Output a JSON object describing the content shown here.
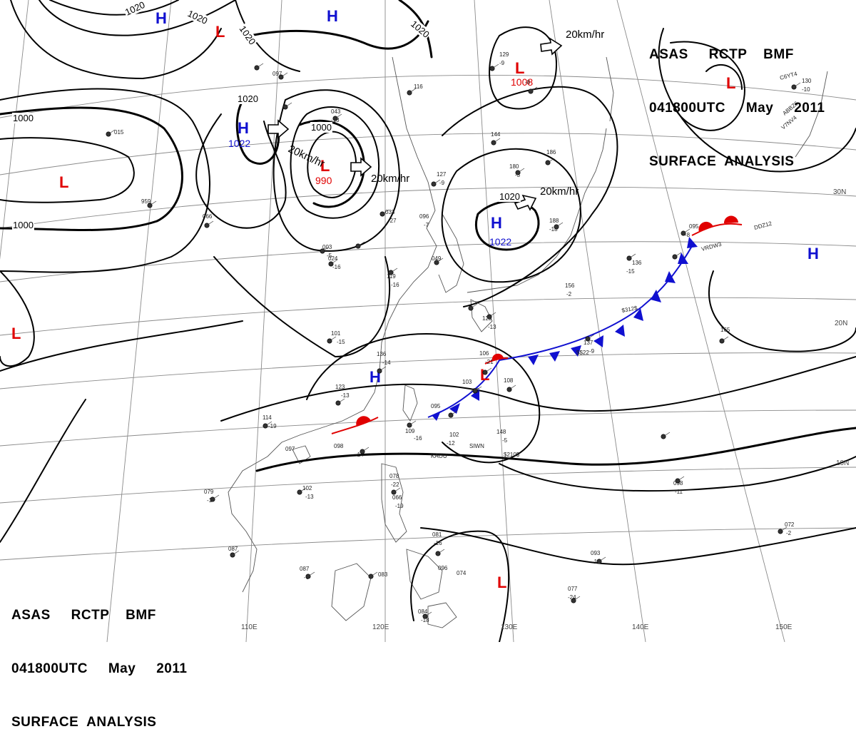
{
  "header": {
    "line1": "ASAS     RCTP    BMF",
    "line2": "041800UTC     May     2011",
    "line3": "SURFACE  ANALYSIS"
  },
  "colors": {
    "high": "#1010d0",
    "low": "#e00000",
    "isobar": "#000000",
    "grid": "#8a8a8a",
    "coast": "#555555"
  },
  "pressure_systems": [
    {
      "id": "h1",
      "type": "H",
      "value": ""
    },
    {
      "id": "h2",
      "type": "H",
      "value": ""
    },
    {
      "id": "h3",
      "type": "H",
      "value": "1022"
    },
    {
      "id": "h4",
      "type": "H",
      "value": "1022"
    },
    {
      "id": "h5",
      "type": "H",
      "value": ""
    },
    {
      "id": "h6",
      "type": "H",
      "value": ""
    },
    {
      "id": "l1",
      "type": "L",
      "value": ""
    },
    {
      "id": "l2",
      "type": "L",
      "value": "990"
    },
    {
      "id": "l3",
      "type": "L",
      "value": "1008"
    },
    {
      "id": "l4",
      "type": "L",
      "value": ""
    },
    {
      "id": "l5",
      "type": "L",
      "value": ""
    },
    {
      "id": "l6",
      "type": "L",
      "value": ""
    },
    {
      "id": "l7",
      "type": "L",
      "value": ""
    },
    {
      "id": "l8",
      "type": "L",
      "value": ""
    }
  ],
  "isobar_labels": [
    "1020",
    "1020",
    "1020",
    "1020",
    "1000",
    "1000",
    "1000",
    "1020",
    "1020"
  ],
  "movement_labels": [
    "20km/hr",
    "20km/hr",
    "20km/hr",
    "20km/hr"
  ],
  "lat_labels": [
    "30N",
    "20N",
    "10N"
  ],
  "lon_labels": [
    "110E",
    "120E",
    "130E",
    "140E",
    "150E"
  ],
  "stations": [
    {
      "id": "s1",
      "value": "136"
    },
    {
      "id": "s2",
      "value": "-14"
    },
    {
      "id": "s3",
      "value": "123"
    },
    {
      "id": "s4",
      "value": "-13"
    },
    {
      "id": "s5",
      "value": "114"
    },
    {
      "id": "s6",
      "value": "-19"
    },
    {
      "id": "s7",
      "value": "097"
    },
    {
      "id": "s8",
      "value": "098"
    },
    {
      "id": "s9",
      "value": "-14"
    },
    {
      "id": "s10",
      "value": "109"
    },
    {
      "id": "s11",
      "value": "-16"
    },
    {
      "id": "s12",
      "value": "102"
    },
    {
      "id": "s13",
      "value": "-12"
    },
    {
      "id": "s14",
      "value": "148"
    },
    {
      "id": "s15",
      "value": "-5"
    },
    {
      "id": "s16",
      "value": "095"
    },
    {
      "id": "s17",
      "value": "106"
    },
    {
      "id": "s18",
      "value": "-21"
    },
    {
      "id": "s19",
      "value": "103"
    },
    {
      "id": "s20",
      "value": "-15"
    },
    {
      "id": "s21",
      "value": "108"
    },
    {
      "id": "s22",
      "value": "137"
    },
    {
      "id": "s23",
      "value": "-9"
    },
    {
      "id": "s24",
      "value": "165"
    },
    {
      "id": "s25",
      "value": "136"
    },
    {
      "id": "s26",
      "value": "-15"
    },
    {
      "id": "s27",
      "value": "129"
    },
    {
      "id": "s28",
      "value": "-13"
    },
    {
      "id": "s29",
      "value": "156"
    },
    {
      "id": "s30",
      "value": "-2"
    },
    {
      "id": "s31",
      "value": "188"
    },
    {
      "id": "s32",
      "value": "-18"
    },
    {
      "id": "s33",
      "value": "095"
    },
    {
      "id": "s34",
      "value": "-8"
    },
    {
      "id": "s35",
      "value": "130"
    },
    {
      "id": "s36",
      "value": "-10"
    },
    {
      "id": "s37",
      "value": "078"
    },
    {
      "id": "s38",
      "value": "-22"
    },
    {
      "id": "s39",
      "value": "066"
    },
    {
      "id": "s40",
      "value": "-19"
    },
    {
      "id": "s41",
      "value": "081"
    },
    {
      "id": "s42",
      "value": "-16"
    },
    {
      "id": "s43",
      "value": "096"
    },
    {
      "id": "s44",
      "value": "074"
    },
    {
      "id": "s45",
      "value": "087"
    },
    {
      "id": "s46",
      "value": "-6"
    },
    {
      "id": "s47",
      "value": "084"
    },
    {
      "id": "s48",
      "value": "-18"
    },
    {
      "id": "s49",
      "value": "077"
    },
    {
      "id": "s50",
      "value": "-24"
    },
    {
      "id": "s51",
      "value": "093"
    },
    {
      "id": "s52",
      "value": "-10"
    },
    {
      "id": "s53",
      "value": "072"
    },
    {
      "id": "s54",
      "value": "-2"
    },
    {
      "id": "s55",
      "value": "098"
    },
    {
      "id": "s56",
      "value": "-11"
    },
    {
      "id": "s57",
      "value": "102"
    },
    {
      "id": "s58",
      "value": "-13"
    },
    {
      "id": "s59",
      "value": "079"
    },
    {
      "id": "s60",
      "value": "-1"
    },
    {
      "id": "s61",
      "value": "087"
    },
    {
      "id": "s62",
      "value": "083"
    },
    {
      "id": "s63",
      "value": "101"
    },
    {
      "id": "s64",
      "value": "-15"
    },
    {
      "id": "s65",
      "value": "119"
    },
    {
      "id": "s66",
      "value": "-16"
    },
    {
      "id": "s67",
      "value": "024"
    },
    {
      "id": "s68",
      "value": "-16"
    },
    {
      "id": "s69",
      "value": "049"
    },
    {
      "id": "s70",
      "value": "033"
    },
    {
      "id": "s71",
      "value": "-27"
    },
    {
      "id": "s72",
      "value": "096"
    },
    {
      "id": "s73",
      "value": "-7"
    },
    {
      "id": "s74",
      "value": "127"
    },
    {
      "id": "s75",
      "value": "-9"
    },
    {
      "id": "s76",
      "value": "144"
    },
    {
      "id": "s77",
      "value": "180"
    },
    {
      "id": "s78",
      "value": "-3"
    },
    {
      "id": "s79",
      "value": "186"
    },
    {
      "id": "s80",
      "value": "043"
    },
    {
      "id": "s81",
      "value": "-13"
    },
    {
      "id": "s82",
      "value": "116"
    },
    {
      "id": "s83",
      "value": "066"
    },
    {
      "id": "s84",
      "value": "003"
    },
    {
      "id": "s85",
      "value": "-5"
    },
    {
      "id": "s86",
      "value": "959"
    },
    {
      "id": "s87",
      "value": "015"
    },
    {
      "id": "s88",
      "value": "097"
    },
    {
      "id": "s89",
      "value": "129"
    },
    {
      "id": "s90",
      "value": "-9"
    },
    {
      "id": "s91",
      "value": "-8"
    }
  ],
  "station_codes": [
    "KAOU",
    "SIWN",
    "$210$",
    "$312$",
    "VRDW3",
    "DDZ12",
    "ABBZ6",
    "V7NV4",
    "C6YT4",
    "$$22"
  ]
}
